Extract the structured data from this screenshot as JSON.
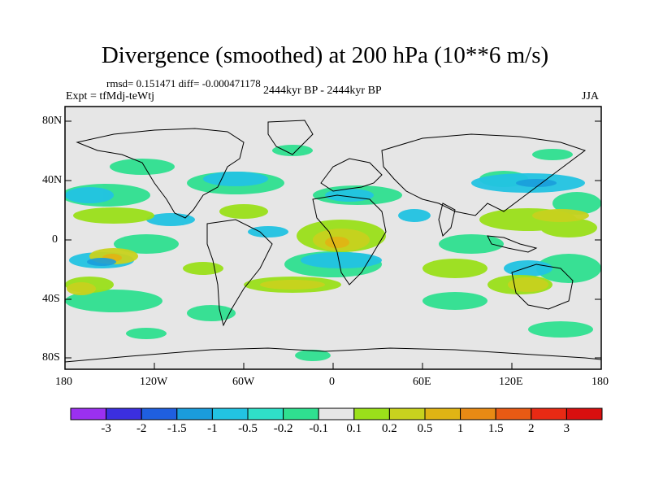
{
  "title": "Divergence (smoothed) at 200 hPa (10**6 m/s)",
  "stats_line": "rmsd= 0.151471  diff= -0.000471178",
  "experiment": "Expt = tfMdj-teWtj",
  "period": "2444kyr BP - 2444kyr BP",
  "season": "JJA",
  "map": {
    "lat_ticks": [
      "80N",
      "40N",
      "0",
      "40S",
      "80S"
    ],
    "lon_ticks": [
      "180",
      "120W",
      "60W",
      "0",
      "60E",
      "120E",
      "180"
    ],
    "land_color": "#e6e6e6",
    "coast_color": "#000000"
  },
  "colorbar": {
    "labels": [
      "-3",
      "-2",
      "-1.5",
      "-1",
      "-0.5",
      "-0.2",
      "-0.1",
      "0.1",
      "0.2",
      "0.5",
      "1",
      "1.5",
      "2",
      "3"
    ],
    "colors": [
      "#9b30f0",
      "#3b2fe0",
      "#1f5fe0",
      "#1a9cdc",
      "#22c3e2",
      "#2fe0c8",
      "#2fe090",
      "#e6e6e6",
      "#9be01a",
      "#c8d21e",
      "#e0b414",
      "#e88a14",
      "#e85a14",
      "#e82a14",
      "#d80f0f"
    ]
  }
}
